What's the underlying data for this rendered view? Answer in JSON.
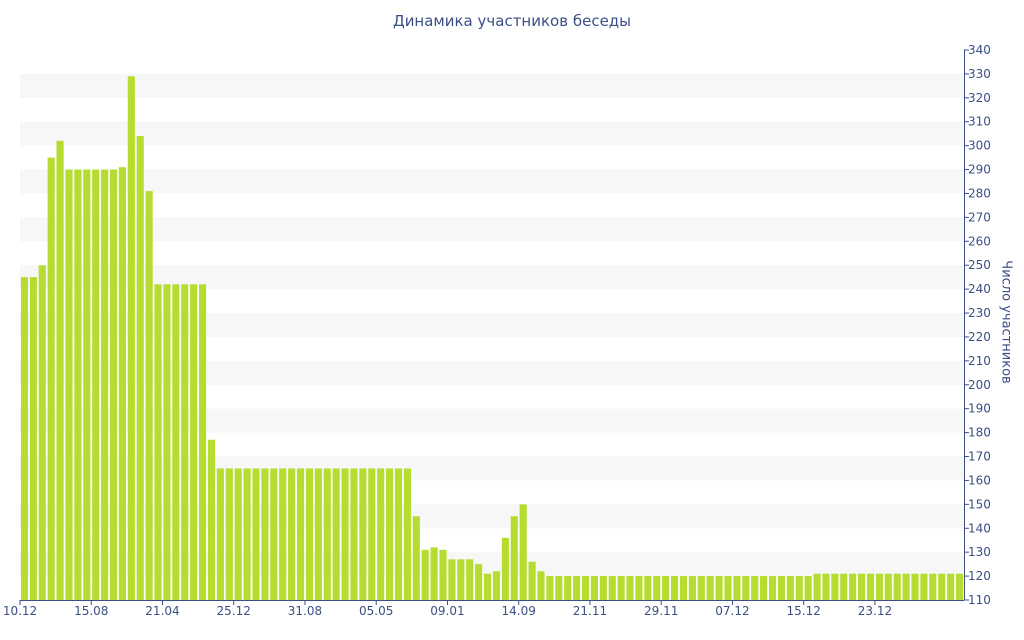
{
  "chart_data": {
    "type": "bar",
    "title": "Динамика участников беседы",
    "ylabel": "Число участников",
    "xlabel": "",
    "ylim": [
      110,
      340
    ],
    "yticks": [
      110,
      120,
      130,
      140,
      150,
      160,
      170,
      180,
      190,
      200,
      210,
      220,
      230,
      240,
      250,
      260,
      270,
      280,
      290,
      300,
      310,
      320,
      330,
      340
    ],
    "x_tick_labels": [
      {
        "label": "10.12",
        "index": 0
      },
      {
        "label": "15.08",
        "index": 8
      },
      {
        "label": "21.04",
        "index": 16
      },
      {
        "label": "25.12",
        "index": 24
      },
      {
        "label": "31.08",
        "index": 32
      },
      {
        "label": "05.05",
        "index": 40
      },
      {
        "label": "09.01",
        "index": 48
      },
      {
        "label": "14.09",
        "index": 56
      },
      {
        "label": "21.11",
        "index": 64
      },
      {
        "label": "29.11",
        "index": 72
      },
      {
        "label": "07.12",
        "index": 80
      },
      {
        "label": "15.12",
        "index": 88
      },
      {
        "label": "23.12",
        "index": 96
      }
    ],
    "values": [
      245,
      245,
      250,
      295,
      302,
      290,
      290,
      290,
      290,
      290,
      290,
      291,
      329,
      304,
      281,
      242,
      242,
      242,
      242,
      242,
      242,
      177,
      165,
      165,
      165,
      165,
      165,
      165,
      165,
      165,
      165,
      165,
      165,
      165,
      165,
      165,
      165,
      165,
      165,
      165,
      165,
      165,
      165,
      165,
      145,
      131,
      132,
      131,
      127,
      127,
      127,
      125,
      121,
      122,
      136,
      145,
      150,
      126,
      122,
      120,
      120,
      120,
      120,
      120,
      120,
      120,
      120,
      120,
      120,
      120,
      120,
      120,
      120,
      120,
      120,
      120,
      120,
      120,
      120,
      120,
      120,
      120,
      120,
      120,
      120,
      120,
      120,
      120,
      120,
      121,
      121,
      121,
      121,
      121,
      121,
      121,
      121,
      121,
      121,
      121,
      121,
      121,
      121,
      121,
      121,
      121
    ],
    "grid": "horizontal bands",
    "colors": {
      "bar": "#b5dc2e",
      "text": "#3b4f86",
      "band": "#f7f7f7",
      "axis": "#3b4f86"
    }
  }
}
